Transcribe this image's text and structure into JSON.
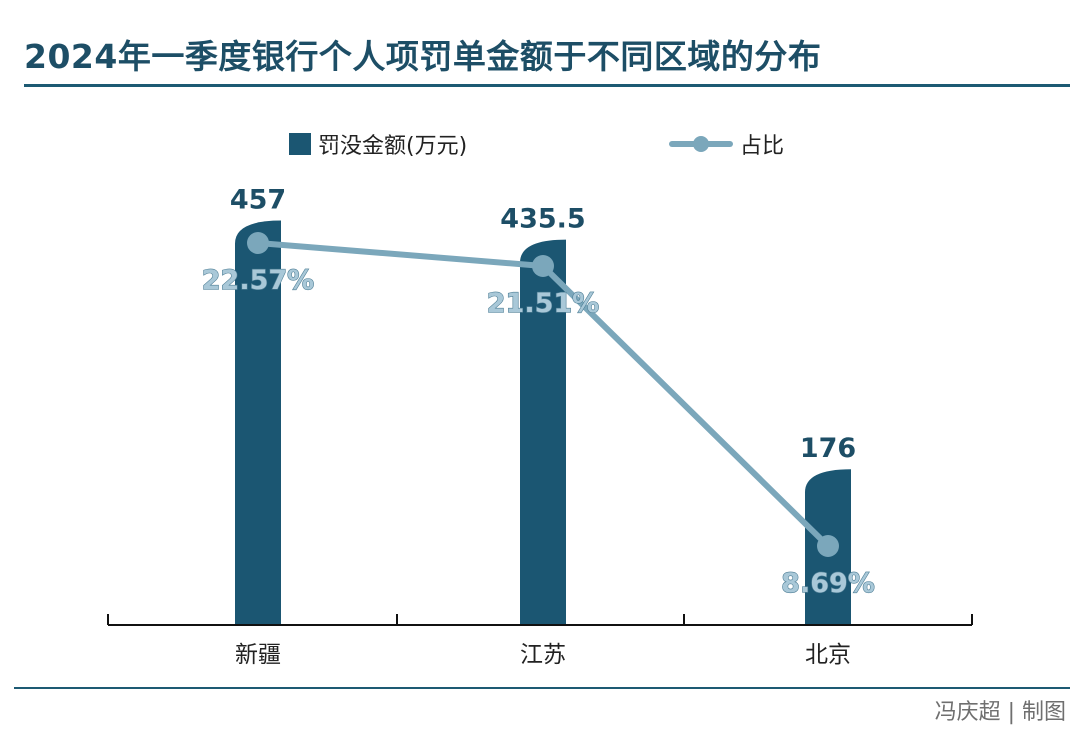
{
  "title": "2024年一季度银行个人项罚单金额于不同区域的分布",
  "credit": "冯庆超 | 制图",
  "colors": {
    "bar": "#1b5672",
    "line": "#7ba7bb",
    "title": "#1d4e66"
  },
  "chart_data": {
    "type": "bar",
    "categories": [
      "新疆",
      "江苏",
      "北京"
    ],
    "series": [
      {
        "name": "罚没金额(万元)",
        "type": "bar",
        "values": [
          457,
          435.5,
          176
        ],
        "labels": [
          "457",
          "435.5",
          "176"
        ]
      },
      {
        "name": "占比",
        "type": "line",
        "values": [
          22.57,
          21.51,
          8.69
        ],
        "labels": [
          "22.57%",
          "21.51%",
          "8.69%"
        ]
      }
    ],
    "legend_position": "top",
    "grid": false
  }
}
